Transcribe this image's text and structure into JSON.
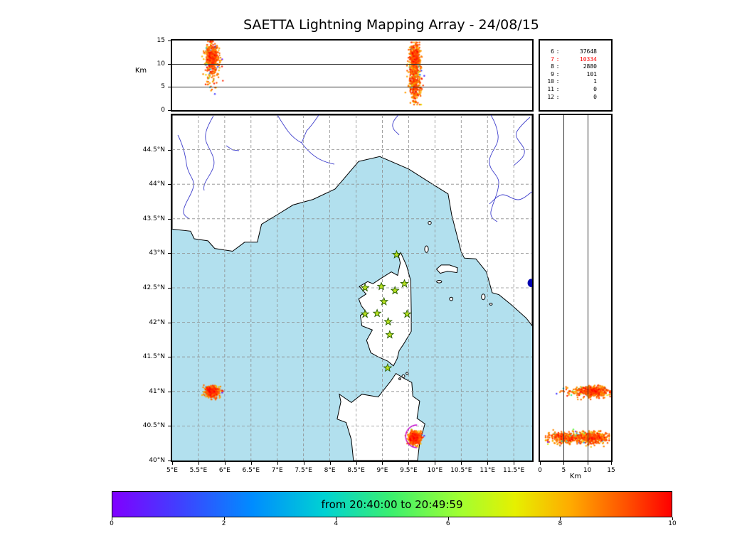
{
  "title": "SAETTA Lightning Mapping Array - 24/08/15",
  "colors": {
    "sea": "#b2e0ee",
    "land": "#ffffff",
    "coast": "#000000",
    "river": "#4040cc",
    "grid": "#8c8c8c",
    "station_fill": "#b8e020",
    "station_edge": "#265c00",
    "lake": "#0000b0",
    "highlight": "#ff0000",
    "flash_arc": "#c400d0"
  },
  "alt_axis": {
    "label": "Km",
    "max_km": 15,
    "ticks": [
      15,
      10,
      5,
      0
    ],
    "gridlines_km": [
      5,
      10
    ]
  },
  "stats_panel": {
    "rows": [
      {
        "level": "6",
        "count": "37648",
        "highlight": false
      },
      {
        "level": "7",
        "count": "10334",
        "highlight": true
      },
      {
        "level": "8",
        "count": "2880",
        "highlight": false
      },
      {
        "level": "9",
        "count": "101",
        "highlight": false
      },
      {
        "level": "10",
        "count": "1",
        "highlight": false
      },
      {
        "level": "11",
        "count": "0",
        "highlight": false
      },
      {
        "level": "12",
        "count": "0",
        "highlight": false
      }
    ]
  },
  "map": {
    "lon_min": 5.0,
    "lon_max": 11.85,
    "lat_min": 40.0,
    "lat_max": 45.0,
    "lon_ticks": {
      "values": [
        5,
        5.5,
        6,
        6.5,
        7,
        7.5,
        8,
        8.5,
        9,
        9.5,
        10,
        10.5,
        11,
        11.5
      ],
      "labels": [
        "5°E",
        "5.5°E",
        "6°E",
        "6.5°E",
        "7°E",
        "7.5°E",
        "8°E",
        "8.5°E",
        "9°E",
        "9.5°E",
        "10°E",
        "10.5°E",
        "11°E",
        "11.5°E"
      ]
    },
    "lat_ticks": {
      "values": [
        44.5,
        44,
        43.5,
        43,
        42.5,
        42,
        41.5,
        41,
        40.5,
        40
      ],
      "labels": [
        "44.5°N",
        "44°N",
        "43.5°N",
        "43°N",
        "42.5°N",
        "42°N",
        "41.5°N",
        "41°N",
        "40.5°N",
        "40°N"
      ]
    },
    "stations_lonlat": [
      [
        9.27,
        42.98
      ],
      [
        8.67,
        42.5
      ],
      [
        8.98,
        42.52
      ],
      [
        9.24,
        42.46
      ],
      [
        9.42,
        42.56
      ],
      [
        9.03,
        42.3
      ],
      [
        8.67,
        42.12
      ],
      [
        8.9,
        42.13
      ],
      [
        9.47,
        42.12
      ],
      [
        9.11,
        42.01
      ],
      [
        9.14,
        41.82
      ],
      [
        9.1,
        41.34
      ]
    ],
    "lake_lonlat": [
      11.83,
      42.57
    ]
  },
  "colorbar": {
    "label": "from 20:40:00 to 20:49:59",
    "min": 0,
    "max": 10,
    "ticks": [
      0,
      2,
      4,
      6,
      8,
      10
    ],
    "gradient_stops": [
      {
        "at": 0,
        "color": "#8000ff"
      },
      {
        "at": 0.12,
        "color": "#4040ff"
      },
      {
        "at": 0.25,
        "color": "#008cff"
      },
      {
        "at": 0.38,
        "color": "#00d2d2"
      },
      {
        "at": 0.5,
        "color": "#3cf06e"
      },
      {
        "at": 0.62,
        "color": "#a0ff32"
      },
      {
        "at": 0.72,
        "color": "#e6f000"
      },
      {
        "at": 0.82,
        "color": "#ffaa00"
      },
      {
        "at": 0.92,
        "color": "#ff5000"
      },
      {
        "at": 1,
        "color": "#ff0000"
      }
    ]
  },
  "chart_data": {
    "type": "scatter",
    "title": "SAETTA Lightning Mapping Array - 24/08/15",
    "time_window": {
      "from": "20:40:00",
      "to": "20:49:59"
    },
    "source_counts_by_min_stations": {
      "6": 37648,
      "7": 10334,
      "8": 2880,
      "9": 101,
      "10": 1,
      "11": 0,
      "12": 0
    },
    "panels": [
      {
        "id": "altitude-vs-longitude",
        "ylabel": "Km",
        "xlim_deg_e": [
          5,
          11.85
        ],
        "ylim_km": [
          0,
          15
        ],
        "gridlines_km": [
          5,
          10
        ]
      },
      {
        "id": "plan-view-map",
        "xlim_deg_e": [
          5,
          11.85
        ],
        "ylim_deg_n": [
          40,
          45
        ],
        "grid": "dashed 0.5 deg"
      },
      {
        "id": "altitude-vs-latitude",
        "xlabel": "Km",
        "xlim_km": [
          0,
          15
        ],
        "ylim_deg_n": [
          40,
          45
        ],
        "gridlines_km": [
          5,
          10
        ]
      }
    ],
    "clusters": [
      {
        "name": "storm-west-41N-5.8E",
        "center_lon": 5.76,
        "center_lat": 41.0,
        "lon_sd": 0.062,
        "lat_sd": 0.038,
        "points": 520,
        "hot_fraction": 0.84,
        "alt_clamp_km": [
          3.5,
          14.8
        ],
        "alt_modes": [
          {
            "mean_km": 11.3,
            "sd_km": 1.4,
            "weight": 0.8
          },
          {
            "mean_km": 8.8,
            "sd_km": 2.2,
            "weight": 0.2
          }
        ]
      },
      {
        "name": "storm-southeast-40.3N-9.6E",
        "center_lon": 9.62,
        "center_lat": 40.33,
        "lon_sd": 0.055,
        "lat_sd": 0.042,
        "points": 780,
        "hot_fraction": 0.78,
        "alt_clamp_km": [
          1.2,
          14.6
        ],
        "alt_modes": [
          {
            "mean_km": 11.0,
            "sd_km": 1.6,
            "weight": 0.62
          },
          {
            "mean_km": 5.3,
            "sd_km": 1.9,
            "weight": 0.38
          }
        ]
      }
    ],
    "flash_arc": {
      "lon": 9.66,
      "lat": 40.35,
      "radius_px": 16
    }
  }
}
